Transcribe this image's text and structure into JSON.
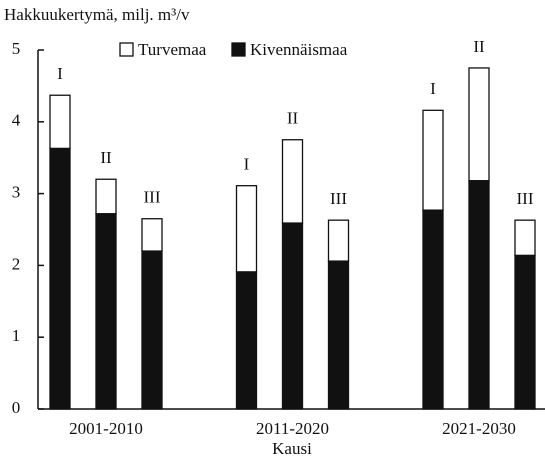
{
  "chart_data": {
    "type": "stacked_bar",
    "ylabel": "Hakkuukertymä, milj. m³/v",
    "xlabel": "Kausi",
    "groups": [
      "2001-2010",
      "2011-2020",
      "2021-2030"
    ],
    "categories": [
      "I",
      "II",
      "III",
      "I",
      "II",
      "III",
      "I",
      "II",
      "III"
    ],
    "series": [
      {
        "name": "Turvemaa",
        "color": "#ffffff",
        "values": [
          0.74,
          0.48,
          0.45,
          1.2,
          1.16,
          0.57,
          1.39,
          1.57,
          0.49
        ]
      },
      {
        "name": "Kivennäismaa",
        "color": "#111111",
        "values": [
          3.63,
          2.72,
          2.2,
          1.91,
          2.59,
          2.06,
          2.77,
          3.18,
          2.14
        ]
      }
    ],
    "ylim": [
      0,
      5
    ],
    "yticks": [
      0,
      1,
      2,
      3,
      4,
      5
    ],
    "legend": "top"
  }
}
